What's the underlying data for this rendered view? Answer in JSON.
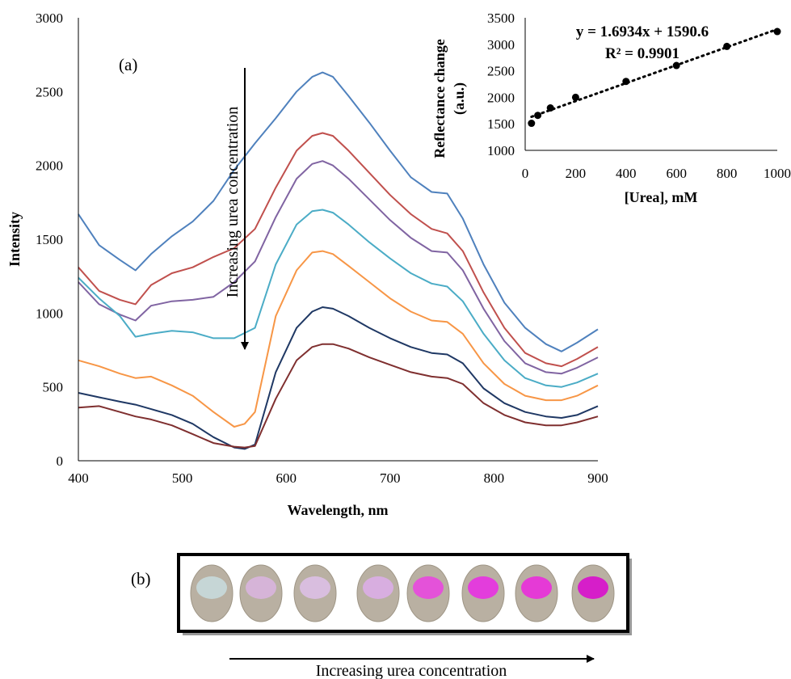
{
  "chart_data": [
    {
      "type": "line",
      "panel_label": "(a)",
      "xlabel": "Wavelength, nm",
      "ylabel": "Intensity",
      "xlim": [
        400,
        900
      ],
      "ylim": [
        0,
        3000
      ],
      "xticks": [
        "400",
        "500",
        "600",
        "700",
        "800",
        "900"
      ],
      "yticks": [
        "0",
        "500",
        "1000",
        "1500",
        "2000",
        "2500",
        "3000"
      ],
      "grid": false,
      "legend": "none",
      "arrow_annotation": "Increasing urea concentration",
      "series": [
        {
          "color": "#4f81bd",
          "x": [
            400,
            420,
            440,
            455,
            470,
            490,
            510,
            530,
            550,
            570,
            590,
            610,
            625,
            635,
            645,
            660,
            680,
            700,
            720,
            740,
            755,
            770,
            790,
            810,
            830,
            850,
            865,
            880,
            900
          ],
          "y": [
            1670,
            1460,
            1360,
            1290,
            1400,
            1520,
            1620,
            1760,
            1970,
            2150,
            2320,
            2500,
            2600,
            2630,
            2600,
            2470,
            2290,
            2100,
            1920,
            1820,
            1810,
            1640,
            1330,
            1070,
            900,
            790,
            740,
            800,
            890
          ]
        },
        {
          "color": "#c0504d",
          "x": [
            400,
            420,
            440,
            455,
            470,
            490,
            510,
            530,
            550,
            570,
            590,
            610,
            625,
            635,
            645,
            660,
            680,
            700,
            720,
            740,
            755,
            770,
            790,
            810,
            830,
            850,
            865,
            880,
            900
          ],
          "y": [
            1310,
            1150,
            1090,
            1060,
            1190,
            1270,
            1310,
            1380,
            1440,
            1570,
            1850,
            2100,
            2200,
            2220,
            2200,
            2100,
            1950,
            1800,
            1670,
            1570,
            1540,
            1420,
            1140,
            900,
            730,
            660,
            640,
            690,
            770
          ]
        },
        {
          "color": "#8064a2",
          "x": [
            400,
            420,
            440,
            455,
            470,
            490,
            510,
            530,
            550,
            570,
            590,
            610,
            625,
            635,
            645,
            660,
            680,
            700,
            720,
            740,
            755,
            770,
            790,
            810,
            830,
            850,
            865,
            880,
            900
          ],
          "y": [
            1210,
            1060,
            990,
            950,
            1050,
            1080,
            1090,
            1110,
            1210,
            1350,
            1650,
            1910,
            2010,
            2030,
            2000,
            1910,
            1770,
            1630,
            1510,
            1420,
            1410,
            1290,
            1030,
            810,
            660,
            600,
            590,
            630,
            700
          ]
        },
        {
          "color": "#4bacc6",
          "x": [
            400,
            420,
            440,
            455,
            470,
            490,
            510,
            530,
            550,
            570,
            590,
            610,
            625,
            635,
            645,
            660,
            680,
            700,
            720,
            740,
            755,
            770,
            790,
            810,
            830,
            850,
            865,
            880,
            900
          ],
          "y": [
            1240,
            1100,
            980,
            840,
            860,
            880,
            870,
            830,
            830,
            900,
            1330,
            1600,
            1690,
            1700,
            1680,
            1600,
            1480,
            1370,
            1270,
            1200,
            1180,
            1080,
            860,
            680,
            560,
            510,
            500,
            530,
            590
          ]
        },
        {
          "color": "#f79646",
          "x": [
            400,
            420,
            440,
            455,
            470,
            490,
            510,
            530,
            550,
            560,
            570,
            590,
            610,
            625,
            635,
            645,
            660,
            680,
            700,
            720,
            740,
            755,
            770,
            790,
            810,
            830,
            850,
            865,
            880,
            900
          ],
          "y": [
            680,
            640,
            590,
            560,
            570,
            510,
            440,
            330,
            230,
            250,
            330,
            980,
            1290,
            1410,
            1420,
            1400,
            1320,
            1210,
            1100,
            1010,
            950,
            940,
            860,
            660,
            520,
            440,
            410,
            410,
            440,
            510
          ]
        },
        {
          "color": "#1f3864",
          "x": [
            400,
            420,
            440,
            455,
            470,
            490,
            510,
            530,
            550,
            560,
            570,
            590,
            610,
            625,
            635,
            645,
            660,
            680,
            700,
            720,
            740,
            755,
            770,
            790,
            810,
            830,
            850,
            865,
            880,
            900
          ],
          "y": [
            460,
            430,
            400,
            380,
            350,
            310,
            250,
            160,
            90,
            80,
            110,
            600,
            900,
            1010,
            1040,
            1030,
            980,
            900,
            830,
            770,
            730,
            720,
            660,
            490,
            390,
            330,
            300,
            290,
            310,
            370
          ]
        },
        {
          "color": "#7f2f2f",
          "x": [
            400,
            420,
            440,
            455,
            470,
            490,
            510,
            530,
            550,
            560,
            570,
            590,
            610,
            625,
            635,
            645,
            660,
            680,
            700,
            720,
            740,
            755,
            770,
            790,
            810,
            830,
            850,
            865,
            880,
            900
          ],
          "y": [
            360,
            370,
            330,
            300,
            280,
            240,
            180,
            120,
            95,
            90,
            100,
            420,
            680,
            770,
            790,
            790,
            760,
            700,
            650,
            600,
            570,
            560,
            520,
            390,
            310,
            260,
            240,
            240,
            260,
            300
          ]
        }
      ]
    },
    {
      "type": "scatter",
      "xlabel": "[Urea], mM",
      "ylabel": "Reflectance change (a.u.)",
      "ylabel_line1": "Reflectance change",
      "ylabel_line2": "(a.u.)",
      "xlim": [
        0,
        1000
      ],
      "ylim": [
        1000,
        3500
      ],
      "xticks": [
        "0",
        "200",
        "400",
        "600",
        "800",
        "1000"
      ],
      "yticks": [
        "1000",
        "1500",
        "2000",
        "2500",
        "3000",
        "3500"
      ],
      "equation": "y = 1.6934x + 1590.6",
      "r_squared": "R² = 0.9901",
      "trendline": {
        "slope": 1.6934,
        "intercept": 1590.6,
        "style": "dotted"
      },
      "x": [
        25,
        50,
        100,
        200,
        400,
        600,
        800,
        1000
      ],
      "y": [
        1510,
        1660,
        1800,
        2000,
        2300,
        2600,
        2960,
        3240
      ]
    }
  ],
  "panel_b": {
    "label": "(b)",
    "caption": "Increasing urea concentration",
    "spot_colors": [
      "#c6d6d6",
      "#d6b4d8",
      "#d9bedf",
      "#d8aee0",
      "#e452d9",
      "#e33ddc",
      "#e53ad6",
      "#d61ec9"
    ],
    "halo_color": "#b9b0a2",
    "frame_color": "#000000"
  }
}
